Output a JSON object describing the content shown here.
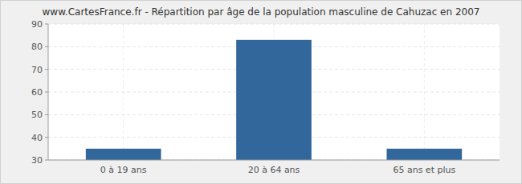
{
  "chart_data": {
    "type": "bar",
    "title": "www.CartesFrance.fr - Répartition par âge de la population masculine de Cahuzac en 2007",
    "categories": [
      "0 à 19 ans",
      "20 à 64 ans",
      "65 ans et plus"
    ],
    "values": [
      35,
      83,
      35
    ],
    "color": "#31679a",
    "ylim": [
      30,
      90
    ],
    "yticks": [
      30,
      40,
      50,
      60,
      70,
      80,
      90
    ],
    "grid": true
  }
}
